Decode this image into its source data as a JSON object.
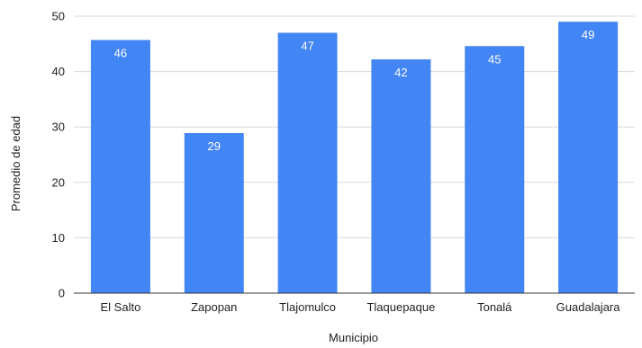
{
  "chart_data": {
    "type": "bar",
    "categories": [
      "El Salto",
      "Zapopan",
      "Tlajomulco",
      "Tlaquepaque",
      "Tonalá",
      "Guadalajara"
    ],
    "values": [
      45.7,
      28.9,
      47.0,
      42.2,
      44.6,
      49.0
    ],
    "data_labels": [
      "46",
      "29",
      "47",
      "42",
      "45",
      "49"
    ],
    "xlabel": "Municipio",
    "ylabel": "Promedio de edad",
    "ylim": [
      0,
      50
    ],
    "yticks": [
      0,
      10,
      20,
      30,
      40,
      50
    ],
    "grid": true,
    "legend": "none",
    "colors": {
      "bar": "#4285f4",
      "grid": "#d9d9d9",
      "axis": "#333333"
    }
  }
}
